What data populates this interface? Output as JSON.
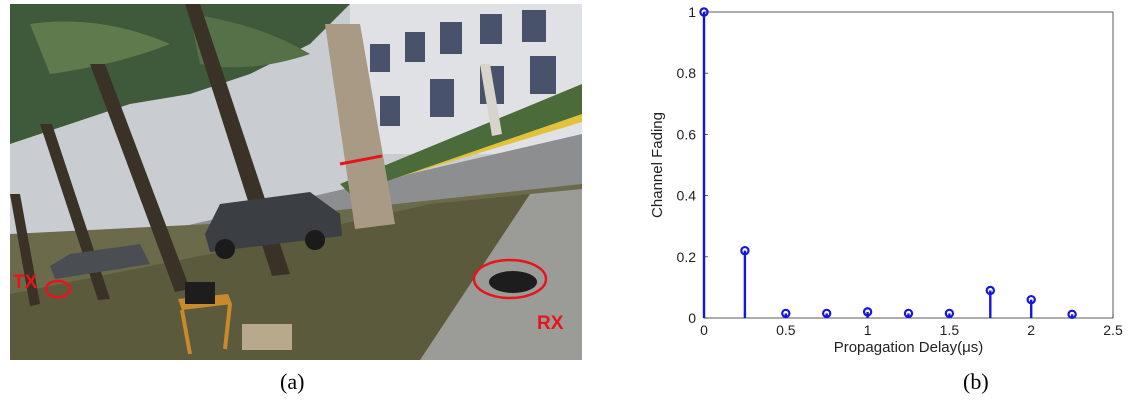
{
  "panels": {
    "a": {
      "caption": "(a)",
      "labels": {
        "tx": "TX",
        "rx": "RX"
      }
    },
    "b": {
      "caption": "(b)"
    }
  },
  "chart_data": {
    "type": "stem",
    "xlabel": "Propagation Delay(μs)",
    "ylabel": "Channel Fading",
    "xlim": [
      0,
      2.5
    ],
    "ylim": [
      0,
      1
    ],
    "xticks": [
      "0",
      "0.5",
      "1",
      "1.5",
      "2",
      "2.5"
    ],
    "yticks": [
      "0",
      "0.2",
      "0.4",
      "0.6",
      "0.8",
      "1"
    ],
    "grid": false,
    "color": "#1515e0",
    "points": [
      {
        "x": 0,
        "y": 1.0
      },
      {
        "x": 0.25,
        "y": 0.22
      },
      {
        "x": 0.5,
        "y": 0.015
      },
      {
        "x": 0.75,
        "y": 0.015
      },
      {
        "x": 1.0,
        "y": 0.02
      },
      {
        "x": 1.25,
        "y": 0.015
      },
      {
        "x": 1.5,
        "y": 0.015
      },
      {
        "x": 1.75,
        "y": 0.09
      },
      {
        "x": 2.0,
        "y": 0.06
      },
      {
        "x": 2.25,
        "y": 0.012
      }
    ]
  }
}
